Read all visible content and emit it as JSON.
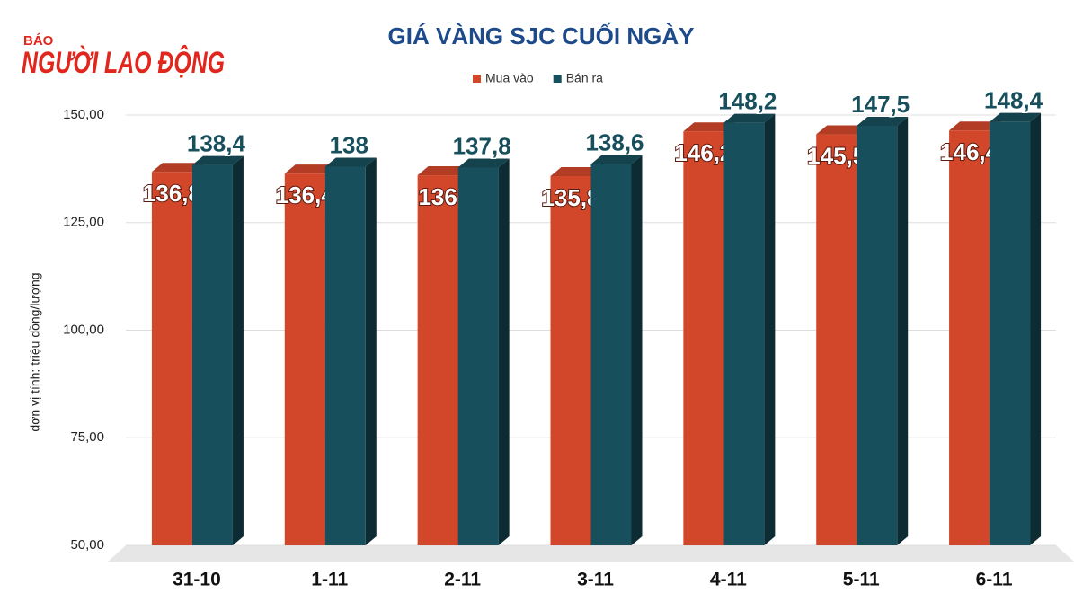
{
  "logo": {
    "top": "BÁO",
    "main": "NGƯỜI LAO ĐỘNG"
  },
  "chart_data": {
    "type": "bar",
    "title": "GIÁ VÀNG SJC CUỐI NGÀY",
    "y_label": "đơn vị tính: triệu đồng/lượng",
    "categories": [
      "31-10",
      "1-11",
      "2-11",
      "3-11",
      "4-11",
      "5-11",
      "6-11"
    ],
    "series": [
      {
        "name": "Mua vào",
        "color": "#d2472a",
        "values": [
          136.8,
          136.4,
          136,
          135.8,
          146.2,
          145.5,
          146.4
        ],
        "value_labels": [
          "136,8",
          "136,4",
          "136",
          "135,8",
          "146,2",
          "145,5",
          "146,4"
        ]
      },
      {
        "name": "Bán ra",
        "color": "#174f5c",
        "values": [
          138.4,
          138,
          137.8,
          138.6,
          148.2,
          147.5,
          148.4
        ],
        "value_labels": [
          "138,4",
          "138",
          "137,8",
          "138,6",
          "148,2",
          "147,5",
          "148,4"
        ]
      }
    ],
    "ylim": [
      50,
      150
    ],
    "yticks": [
      {
        "value": 50,
        "label": "50,00"
      },
      {
        "value": 75,
        "label": "75,00"
      },
      {
        "value": 100,
        "label": "100,00"
      },
      {
        "value": 125,
        "label": "125,00"
      },
      {
        "value": 150,
        "label": "150,00"
      }
    ],
    "grid": true,
    "legend": "top"
  }
}
